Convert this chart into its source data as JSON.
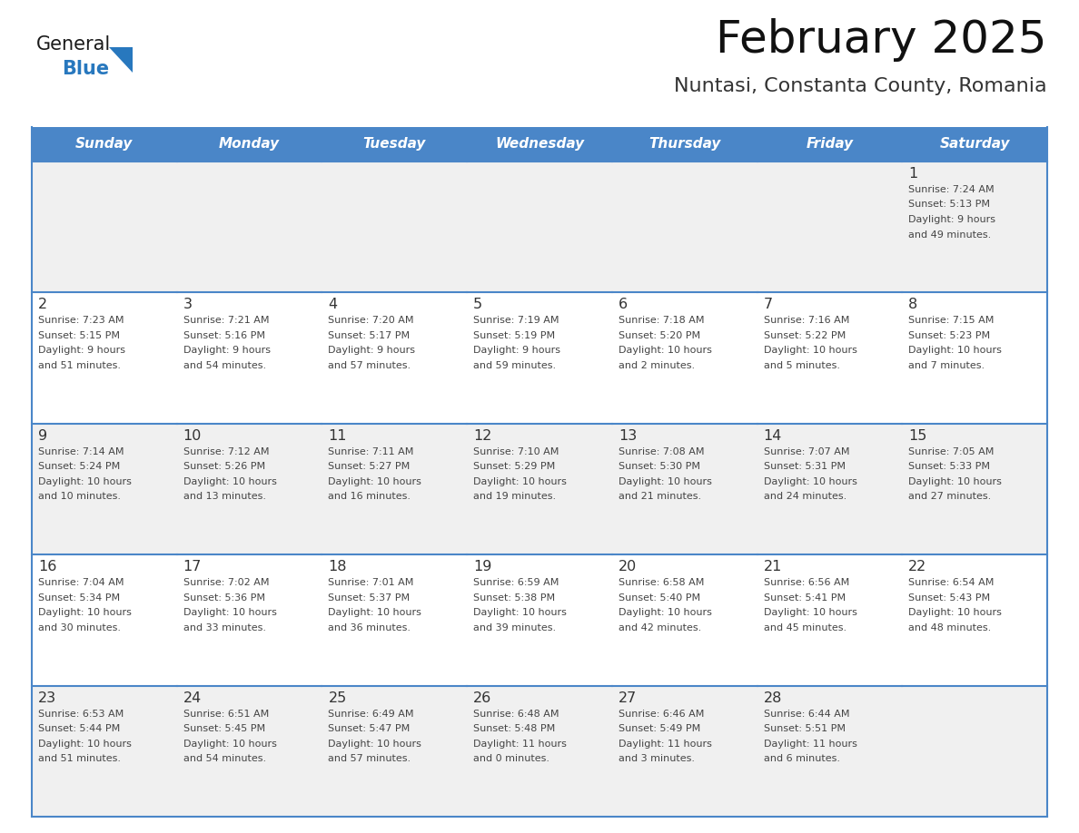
{
  "title": "February 2025",
  "subtitle": "Nuntasi, Constanta County, Romania",
  "header_bg": "#4A86C8",
  "header_text": "#FFFFFF",
  "days_of_week": [
    "Sunday",
    "Monday",
    "Tuesday",
    "Wednesday",
    "Thursday",
    "Friday",
    "Saturday"
  ],
  "row_bg_odd": "#F0F0F0",
  "row_bg_even": "#FFFFFF",
  "cell_text_color": "#444444",
  "day_num_color": "#333333",
  "grid_color": "#4A86C8",
  "calendar_data": [
    [
      null,
      null,
      null,
      null,
      null,
      null,
      {
        "day": "1",
        "sunrise": "7:24 AM",
        "sunset": "5:13 PM",
        "daylight_l1": "9 hours",
        "daylight_l2": "and 49 minutes."
      }
    ],
    [
      {
        "day": "2",
        "sunrise": "7:23 AM",
        "sunset": "5:15 PM",
        "daylight_l1": "9 hours",
        "daylight_l2": "and 51 minutes."
      },
      {
        "day": "3",
        "sunrise": "7:21 AM",
        "sunset": "5:16 PM",
        "daylight_l1": "9 hours",
        "daylight_l2": "and 54 minutes."
      },
      {
        "day": "4",
        "sunrise": "7:20 AM",
        "sunset": "5:17 PM",
        "daylight_l1": "9 hours",
        "daylight_l2": "and 57 minutes."
      },
      {
        "day": "5",
        "sunrise": "7:19 AM",
        "sunset": "5:19 PM",
        "daylight_l1": "9 hours",
        "daylight_l2": "and 59 minutes."
      },
      {
        "day": "6",
        "sunrise": "7:18 AM",
        "sunset": "5:20 PM",
        "daylight_l1": "10 hours",
        "daylight_l2": "and 2 minutes."
      },
      {
        "day": "7",
        "sunrise": "7:16 AM",
        "sunset": "5:22 PM",
        "daylight_l1": "10 hours",
        "daylight_l2": "and 5 minutes."
      },
      {
        "day": "8",
        "sunrise": "7:15 AM",
        "sunset": "5:23 PM",
        "daylight_l1": "10 hours",
        "daylight_l2": "and 7 minutes."
      }
    ],
    [
      {
        "day": "9",
        "sunrise": "7:14 AM",
        "sunset": "5:24 PM",
        "daylight_l1": "10 hours",
        "daylight_l2": "and 10 minutes."
      },
      {
        "day": "10",
        "sunrise": "7:12 AM",
        "sunset": "5:26 PM",
        "daylight_l1": "10 hours",
        "daylight_l2": "and 13 minutes."
      },
      {
        "day": "11",
        "sunrise": "7:11 AM",
        "sunset": "5:27 PM",
        "daylight_l1": "10 hours",
        "daylight_l2": "and 16 minutes."
      },
      {
        "day": "12",
        "sunrise": "7:10 AM",
        "sunset": "5:29 PM",
        "daylight_l1": "10 hours",
        "daylight_l2": "and 19 minutes."
      },
      {
        "day": "13",
        "sunrise": "7:08 AM",
        "sunset": "5:30 PM",
        "daylight_l1": "10 hours",
        "daylight_l2": "and 21 minutes."
      },
      {
        "day": "14",
        "sunrise": "7:07 AM",
        "sunset": "5:31 PM",
        "daylight_l1": "10 hours",
        "daylight_l2": "and 24 minutes."
      },
      {
        "day": "15",
        "sunrise": "7:05 AM",
        "sunset": "5:33 PM",
        "daylight_l1": "10 hours",
        "daylight_l2": "and 27 minutes."
      }
    ],
    [
      {
        "day": "16",
        "sunrise": "7:04 AM",
        "sunset": "5:34 PM",
        "daylight_l1": "10 hours",
        "daylight_l2": "and 30 minutes."
      },
      {
        "day": "17",
        "sunrise": "7:02 AM",
        "sunset": "5:36 PM",
        "daylight_l1": "10 hours",
        "daylight_l2": "and 33 minutes."
      },
      {
        "day": "18",
        "sunrise": "7:01 AM",
        "sunset": "5:37 PM",
        "daylight_l1": "10 hours",
        "daylight_l2": "and 36 minutes."
      },
      {
        "day": "19",
        "sunrise": "6:59 AM",
        "sunset": "5:38 PM",
        "daylight_l1": "10 hours",
        "daylight_l2": "and 39 minutes."
      },
      {
        "day": "20",
        "sunrise": "6:58 AM",
        "sunset": "5:40 PM",
        "daylight_l1": "10 hours",
        "daylight_l2": "and 42 minutes."
      },
      {
        "day": "21",
        "sunrise": "6:56 AM",
        "sunset": "5:41 PM",
        "daylight_l1": "10 hours",
        "daylight_l2": "and 45 minutes."
      },
      {
        "day": "22",
        "sunrise": "6:54 AM",
        "sunset": "5:43 PM",
        "daylight_l1": "10 hours",
        "daylight_l2": "and 48 minutes."
      }
    ],
    [
      {
        "day": "23",
        "sunrise": "6:53 AM",
        "sunset": "5:44 PM",
        "daylight_l1": "10 hours",
        "daylight_l2": "and 51 minutes."
      },
      {
        "day": "24",
        "sunrise": "6:51 AM",
        "sunset": "5:45 PM",
        "daylight_l1": "10 hours",
        "daylight_l2": "and 54 minutes."
      },
      {
        "day": "25",
        "sunrise": "6:49 AM",
        "sunset": "5:47 PM",
        "daylight_l1": "10 hours",
        "daylight_l2": "and 57 minutes."
      },
      {
        "day": "26",
        "sunrise": "6:48 AM",
        "sunset": "5:48 PM",
        "daylight_l1": "11 hours",
        "daylight_l2": "and 0 minutes."
      },
      {
        "day": "27",
        "sunrise": "6:46 AM",
        "sunset": "5:49 PM",
        "daylight_l1": "11 hours",
        "daylight_l2": "and 3 minutes."
      },
      {
        "day": "28",
        "sunrise": "6:44 AM",
        "sunset": "5:51 PM",
        "daylight_l1": "11 hours",
        "daylight_l2": "and 6 minutes."
      },
      null
    ]
  ],
  "logo_color_general": "#1a1a1a",
  "logo_color_blue": "#2878BE",
  "logo_triangle_color": "#2878BE"
}
